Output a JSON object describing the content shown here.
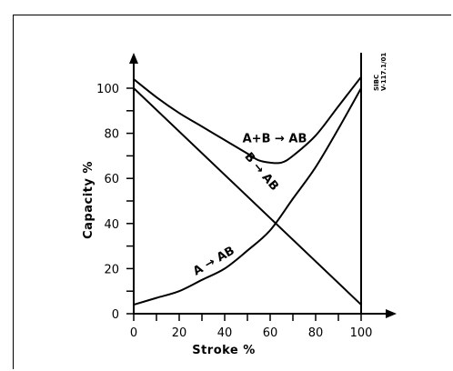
{
  "chart_data": {
    "type": "line",
    "xlabel": "Stroke %",
    "ylabel": "Capacity %",
    "xlim": [
      0,
      100
    ],
    "ylim": [
      0,
      100
    ],
    "x_ticks": [
      "0",
      "20",
      "40",
      "60",
      "80",
      "100"
    ],
    "y_ticks": [
      "0",
      "20",
      "40",
      "60",
      "80",
      "100"
    ],
    "grid": false,
    "reference": "SIBC\nV-117.1/01",
    "series": [
      {
        "name": "A+B → AB",
        "x": [
          0,
          10,
          20,
          30,
          40,
          50,
          55,
          60,
          65,
          70,
          80,
          90,
          100
        ],
        "y": [
          104,
          96,
          89,
          83,
          77,
          71,
          68,
          67,
          67,
          70,
          79,
          92,
          105
        ],
        "label_at": [
          62,
          76
        ]
      },
      {
        "name": "B → AB",
        "x": [
          0,
          100
        ],
        "y": [
          100,
          4
        ],
        "label_at": [
          55,
          62
        ],
        "label_rotate": 50
      },
      {
        "name": "A → AB",
        "x": [
          0,
          10,
          20,
          30,
          40,
          50,
          60,
          70,
          80,
          90,
          100
        ],
        "y": [
          4,
          7,
          10,
          15,
          20,
          28,
          37,
          51,
          65,
          82,
          100
        ],
        "label_at": [
          36,
          22
        ],
        "label_rotate": -30
      }
    ]
  }
}
